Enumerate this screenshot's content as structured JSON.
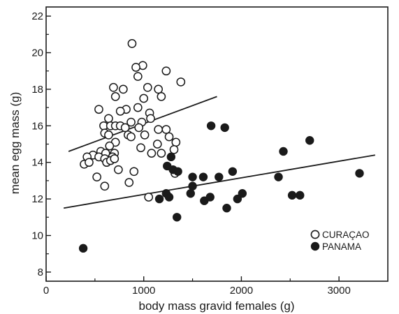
{
  "chart_data": {
    "type": "scatter",
    "title": "",
    "xlabel": "body mass gravid females (g)",
    "ylabel": "mean egg mass (g)",
    "xlim": [
      0,
      3500
    ],
    "ylim": [
      7.5,
      22.5
    ],
    "xticks": [
      0,
      1000,
      2000,
      3000
    ],
    "yticks": [
      8,
      10,
      12,
      14,
      16,
      18,
      20,
      22
    ],
    "grid": false,
    "legend_position": "bottom-right",
    "series": [
      {
        "name": "CURAÇAO",
        "marker": "open-circle",
        "points": [
          [
            880,
            20.5
          ],
          [
            990,
            19.3
          ],
          [
            920,
            19.2
          ],
          [
            1230,
            19.0
          ],
          [
            940,
            18.7
          ],
          [
            1380,
            18.4
          ],
          [
            690,
            18.1
          ],
          [
            790,
            18.0
          ],
          [
            1150,
            18.0
          ],
          [
            1040,
            18.1
          ],
          [
            710,
            17.6
          ],
          [
            1180,
            17.6
          ],
          [
            1000,
            17.5
          ],
          [
            540,
            16.9
          ],
          [
            820,
            16.9
          ],
          [
            940,
            17.0
          ],
          [
            760,
            16.8
          ],
          [
            1060,
            16.7
          ],
          [
            640,
            16.4
          ],
          [
            1070,
            16.4
          ],
          [
            870,
            16.2
          ],
          [
            980,
            16.2
          ],
          [
            590,
            16.0
          ],
          [
            660,
            16.0
          ],
          [
            710,
            16.0
          ],
          [
            760,
            16.0
          ],
          [
            810,
            15.9
          ],
          [
            950,
            15.9
          ],
          [
            1150,
            15.8
          ],
          [
            1230,
            15.8
          ],
          [
            600,
            15.6
          ],
          [
            640,
            15.5
          ],
          [
            840,
            15.5
          ],
          [
            870,
            15.4
          ],
          [
            1010,
            15.5
          ],
          [
            1260,
            15.4
          ],
          [
            1330,
            15.1
          ],
          [
            710,
            15.1
          ],
          [
            1140,
            15.0
          ],
          [
            650,
            14.9
          ],
          [
            970,
            14.8
          ],
          [
            1310,
            14.7
          ],
          [
            560,
            14.6
          ],
          [
            610,
            14.5
          ],
          [
            700,
            14.5
          ],
          [
            480,
            14.4
          ],
          [
            420,
            14.3
          ],
          [
            540,
            14.3
          ],
          [
            600,
            14.2
          ],
          [
            680,
            14.3
          ],
          [
            1080,
            14.5
          ],
          [
            1180,
            14.5
          ],
          [
            620,
            14.0
          ],
          [
            660,
            14.1
          ],
          [
            700,
            14.2
          ],
          [
            390,
            13.9
          ],
          [
            440,
            14.0
          ],
          [
            740,
            13.6
          ],
          [
            900,
            13.5
          ],
          [
            1320,
            13.4
          ],
          [
            520,
            13.2
          ],
          [
            850,
            12.9
          ],
          [
            600,
            12.7
          ],
          [
            1050,
            12.1
          ]
        ]
      },
      {
        "name": "PANAMA",
        "marker": "filled-circle",
        "points": [
          [
            380,
            9.3
          ],
          [
            1160,
            12.0
          ],
          [
            1230,
            12.3
          ],
          [
            1260,
            12.1
          ],
          [
            1240,
            13.8
          ],
          [
            1280,
            14.3
          ],
          [
            1300,
            13.6
          ],
          [
            1350,
            13.5
          ],
          [
            1340,
            11.0
          ],
          [
            1480,
            12.3
          ],
          [
            1500,
            12.7
          ],
          [
            1500,
            13.2
          ],
          [
            1610,
            13.2
          ],
          [
            1620,
            11.9
          ],
          [
            1680,
            12.1
          ],
          [
            1690,
            16.0
          ],
          [
            1770,
            13.2
          ],
          [
            1830,
            15.9
          ],
          [
            1850,
            11.5
          ],
          [
            1910,
            13.5
          ],
          [
            1960,
            12.0
          ],
          [
            2010,
            12.3
          ],
          [
            2380,
            13.2
          ],
          [
            2430,
            14.6
          ],
          [
            2520,
            12.2
          ],
          [
            2600,
            12.2
          ],
          [
            2700,
            15.2
          ],
          [
            3210,
            13.4
          ]
        ]
      }
    ],
    "fit_lines": [
      {
        "series": "CURAÇAO",
        "x": [
          230,
          1750
        ],
        "y": [
          14.6,
          17.6
        ]
      },
      {
        "series": "PANAMA",
        "x": [
          180,
          3370
        ],
        "y": [
          11.5,
          14.4
        ]
      }
    ]
  }
}
